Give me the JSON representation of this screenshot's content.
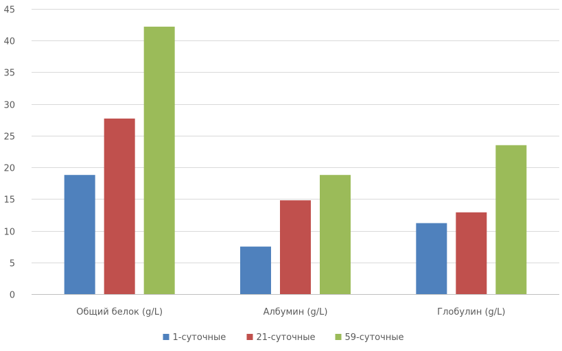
{
  "chart_data": {
    "type": "bar",
    "categories": [
      "Общий белок (g/L)",
      "Албумин (g/L)",
      "Глобулин (g/L)"
    ],
    "series": [
      {
        "name": "1-суточные",
        "values": [
          18.8,
          7.5,
          11.2
        ],
        "color": "#4f81bd"
      },
      {
        "name": "21-суточные",
        "values": [
          27.7,
          14.8,
          12.9
        ],
        "color": "#c0504d"
      },
      {
        "name": "59-суточные",
        "values": [
          42.2,
          18.8,
          23.5
        ],
        "color": "#9bbb59"
      }
    ],
    "ylim": [
      0,
      45
    ],
    "yticks": [
      0,
      5,
      10,
      15,
      20,
      25,
      30,
      35,
      40,
      45
    ],
    "grid": true,
    "legend": "bottom-center"
  }
}
